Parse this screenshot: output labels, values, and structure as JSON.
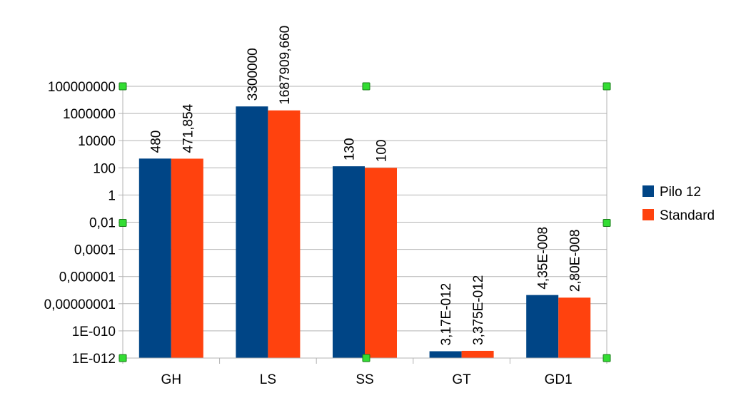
{
  "chart_data": {
    "type": "bar",
    "yscale": "log10",
    "ylim": [
      1e-12,
      100000000.0
    ],
    "grid": "horizontal",
    "legend_position": "right",
    "categories": [
      "GH",
      "LS",
      "SS",
      "GT",
      "GD1"
    ],
    "yticks": [
      {
        "value": 100000000.0,
        "label": "100000000"
      },
      {
        "value": 1000000.0,
        "label": "1000000"
      },
      {
        "value": 10000.0,
        "label": "10000"
      },
      {
        "value": 100,
        "label": "100"
      },
      {
        "value": 1,
        "label": "1"
      },
      {
        "value": 0.01,
        "label": "0,01"
      },
      {
        "value": 0.0001,
        "label": "0,0001"
      },
      {
        "value": 1e-06,
        "label": "0,000001"
      },
      {
        "value": 1e-08,
        "label": "0,00000001"
      },
      {
        "value": 1e-10,
        "label": "1E-010"
      },
      {
        "value": 1e-12,
        "label": "1E-012"
      }
    ],
    "series": [
      {
        "name": "Pilo 12",
        "color": "#004586",
        "values": [
          480,
          3300000,
          130,
          3.17e-12,
          4.35e-08
        ],
        "labels": [
          "480",
          "3300000",
          "130",
          "3,17E-012",
          "4,35E-008"
        ]
      },
      {
        "name": "Standard",
        "color": "#ff420e",
        "values": [
          471.854,
          1687909.66,
          100,
          3.375e-12,
          2.8e-08
        ],
        "labels": [
          "471,854",
          "1687909,660",
          "100",
          "3,375E-012",
          "2,80E-008"
        ]
      }
    ]
  }
}
